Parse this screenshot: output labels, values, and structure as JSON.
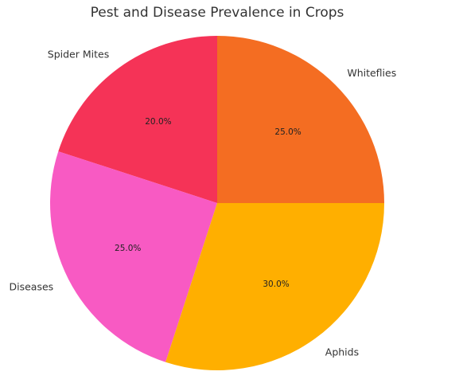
{
  "chart_data": {
    "type": "pie",
    "title": "Pest and Disease Prevalence in Crops",
    "start_angle_deg": 90,
    "direction": "counterclockwise",
    "slices": [
      {
        "label": "Spider Mites",
        "value": 20.0,
        "pct_label": "20.0%",
        "color": "#f53357"
      },
      {
        "label": "Diseases",
        "value": 25.0,
        "pct_label": "25.0%",
        "color": "#f85ac3"
      },
      {
        "label": "Aphids",
        "value": 30.0,
        "pct_label": "30.0%",
        "color": "#ffaf00"
      },
      {
        "label": "Whiteflies",
        "value": 25.0,
        "pct_label": "25.0%",
        "color": "#f46d22"
      }
    ]
  }
}
